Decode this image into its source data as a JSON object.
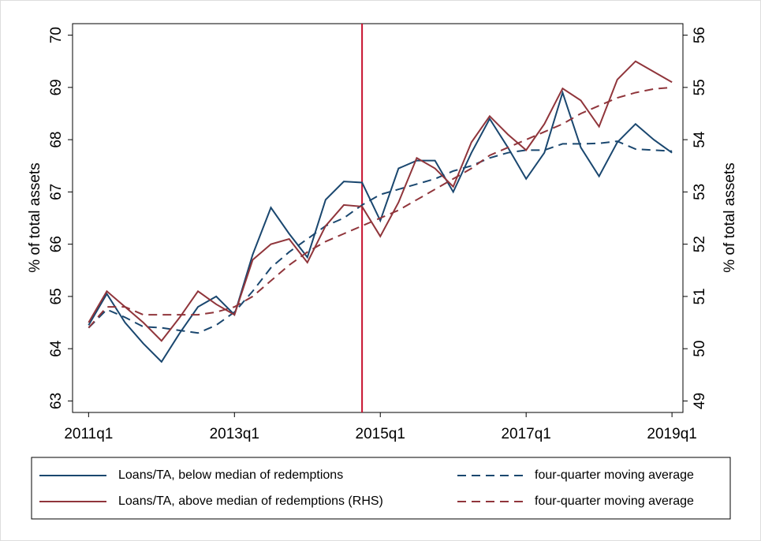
{
  "chart_data": {
    "type": "line",
    "x": [
      2011,
      2011.25,
      2011.5,
      2011.75,
      2012,
      2012.25,
      2012.5,
      2012.75,
      2013,
      2013.25,
      2013.5,
      2013.75,
      2014,
      2014.25,
      2014.5,
      2014.75,
      2015,
      2015.25,
      2015.5,
      2015.75,
      2016,
      2016.25,
      2016.5,
      2016.75,
      2017,
      2017.25,
      2017.5,
      2017.75,
      2018,
      2018.25,
      2018.5,
      2018.75,
      2019
    ],
    "xlim": [
      2010.78,
      2019.15
    ],
    "xticks": [
      {
        "value": 2011,
        "label": "2011q1"
      },
      {
        "value": 2013,
        "label": "2013q1"
      },
      {
        "value": 2015,
        "label": "2015q1"
      },
      {
        "value": 2017,
        "label": "2017q1"
      },
      {
        "value": 2019,
        "label": "2019q1"
      }
    ],
    "ylim": [
      62.78,
      70.22
    ],
    "yticks": [
      63,
      64,
      65,
      66,
      67,
      68,
      69,
      70
    ],
    "y2lim": [
      48.78,
      56.22
    ],
    "y2ticks": [
      49,
      50,
      51,
      52,
      53,
      54,
      55,
      56
    ],
    "ylabel": "% of total assets",
    "y2label": "% of total assets",
    "vline": 2014.75,
    "vline_color": "#c8102e",
    "series": [
      {
        "name": "Loans/TA, below median of redemptions",
        "color": "#1a476f",
        "dash": false,
        "values": [
          64.45,
          65.05,
          64.5,
          64.1,
          63.75,
          64.3,
          64.8,
          65.0,
          64.65,
          65.8,
          66.7,
          66.2,
          65.75,
          66.85,
          67.2,
          67.18,
          66.45,
          67.45,
          67.6,
          67.6,
          67.0,
          67.75,
          68.4,
          67.85,
          67.25,
          67.75,
          68.9,
          67.85,
          67.3,
          67.95,
          68.3,
          68.0,
          67.75
        ]
      },
      {
        "name": "four-quarter moving average",
        "color": "#1a476f",
        "dash": true,
        "values": [
          64.4,
          64.75,
          64.6,
          64.42,
          64.4,
          64.35,
          64.3,
          64.45,
          64.7,
          65.1,
          65.55,
          65.85,
          66.1,
          66.35,
          66.5,
          66.75,
          66.95,
          67.05,
          67.15,
          67.25,
          67.4,
          67.5,
          67.65,
          67.75,
          67.8,
          67.8,
          67.92,
          67.92,
          67.93,
          67.97,
          67.82,
          67.8,
          67.78
        ]
      },
      {
        "name": "Loans/TA, above median of redemptions (RHS)",
        "color": "#90353b",
        "dash": false,
        "axis": "y2",
        "values": [
          50.5,
          51.1,
          50.8,
          50.5,
          50.15,
          50.6,
          51.1,
          50.85,
          50.65,
          51.7,
          52.0,
          52.1,
          51.65,
          52.35,
          52.75,
          52.72,
          52.15,
          52.8,
          53.65,
          53.45,
          53.1,
          53.95,
          54.45,
          54.1,
          53.8,
          54.3,
          54.98,
          54.75,
          54.25,
          55.15,
          55.5,
          55.3,
          55.1
        ]
      },
      {
        "name": "four-quarter moving average",
        "color": "#90353b",
        "dash": true,
        "axis": "y2",
        "values": [
          50.4,
          50.8,
          50.8,
          50.65,
          50.65,
          50.65,
          50.65,
          50.7,
          50.8,
          51.0,
          51.3,
          51.6,
          51.85,
          52.05,
          52.2,
          52.35,
          52.5,
          52.65,
          52.85,
          53.05,
          53.25,
          53.45,
          53.7,
          53.85,
          54.0,
          54.15,
          54.3,
          54.5,
          54.65,
          54.8,
          54.9,
          54.97,
          55.0
        ]
      }
    ]
  }
}
